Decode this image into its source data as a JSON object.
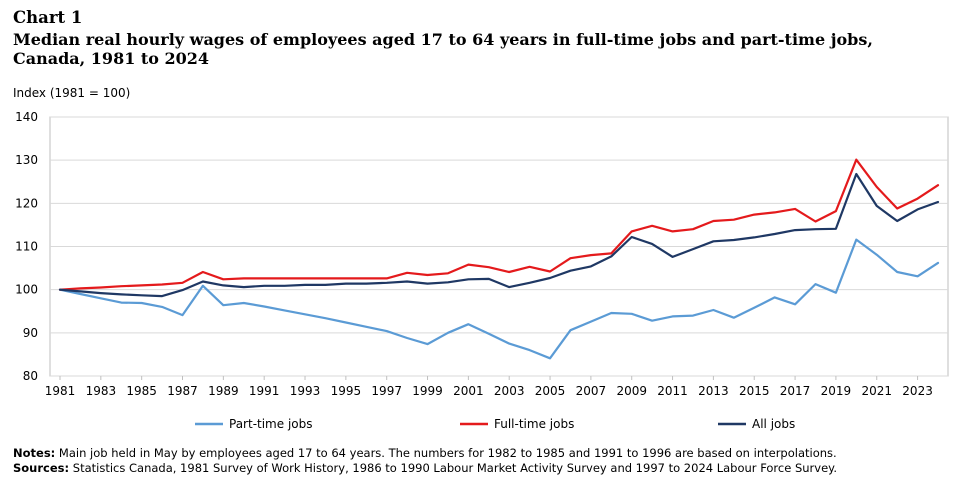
{
  "header": {
    "chart_number": "Chart 1",
    "title_line1": "Median real hourly wages of employees aged 17 to 64 years in full-time jobs and part-time jobs,",
    "title_line2": "Canada, 1981 to 2024"
  },
  "notes": {
    "notes_label": "Notes:",
    "notes_text": " Main job held in May by employees aged 17 to 64 years. The numbers for 1982 to 1985 and 1991 to 1996 are based on interpolations.",
    "sources_label": "Sources:",
    "sources_text": " Statistics Canada, 1981 Survey of Work History, 1986 to 1990 Labour Market Activity Survey and 1997 to 2024 Labour Force Survey."
  },
  "chart_data": {
    "type": "line",
    "title": "Median real hourly wages of employees aged 17 to 64 years in full-time jobs and part-time jobs, Canada, 1981 to 2024",
    "ylabel": "Index (1981 = 100)",
    "xlabel": "",
    "ylim": [
      80,
      140
    ],
    "yticks": [
      80,
      90,
      100,
      110,
      120,
      130,
      140
    ],
    "xticks": [
      1981,
      1983,
      1985,
      1987,
      1989,
      1991,
      1993,
      1995,
      1997,
      1999,
      2001,
      2003,
      2005,
      2007,
      2009,
      2011,
      2013,
      2015,
      2017,
      2019,
      2021,
      2023
    ],
    "xlim": [
      1981,
      2024
    ],
    "grid": true,
    "legend_position": "bottom",
    "x": [
      1981,
      1982,
      1983,
      1984,
      1985,
      1986,
      1987,
      1988,
      1989,
      1990,
      1991,
      1992,
      1993,
      1994,
      1995,
      1996,
      1997,
      1998,
      1999,
      2000,
      2001,
      2002,
      2003,
      2004,
      2005,
      2006,
      2007,
      2008,
      2009,
      2010,
      2011,
      2012,
      2013,
      2014,
      2015,
      2016,
      2017,
      2018,
      2019,
      2020,
      2021,
      2022,
      2023,
      2024
    ],
    "series": [
      {
        "name": "Part-time jobs",
        "color": "#5b9bd5",
        "values": [
          100,
          99,
          98,
          97,
          96.9,
          96,
          94.1,
          100.9,
          96.4,
          96.9,
          96.1,
          95.2,
          94.3,
          93.4,
          92.4,
          91.4,
          90.4,
          88.8,
          87.4,
          90,
          92,
          89.8,
          87.5,
          86,
          84.1,
          90.6,
          92.6,
          94.6,
          94.4,
          92.8,
          93.8,
          94,
          95.3,
          93.5,
          95.8,
          98.2,
          96.6,
          101.3,
          99.3,
          111.6,
          108.1,
          104.1,
          103.1,
          106.2
        ]
      },
      {
        "name": "Full-time jobs",
        "color": "#e41a1c",
        "values": [
          100,
          100.3,
          100.5,
          100.8,
          101,
          101.2,
          101.6,
          104.1,
          102.4,
          102.6,
          102.6,
          102.6,
          102.6,
          102.6,
          102.6,
          102.6,
          102.6,
          103.9,
          103.4,
          103.8,
          105.8,
          105.2,
          104.1,
          105.3,
          104.2,
          107.3,
          108,
          108.4,
          113.5,
          114.8,
          113.5,
          114,
          115.9,
          116.2,
          117.4,
          117.9,
          118.7,
          115.8,
          118.2,
          130.1,
          123.8,
          118.8,
          121.1,
          124.2
        ]
      },
      {
        "name": "All jobs",
        "color": "#1f3864",
        "values": [
          100,
          99.6,
          99.2,
          98.9,
          98.7,
          98.5,
          99.9,
          101.9,
          101,
          100.6,
          100.9,
          100.9,
          101.1,
          101.1,
          101.4,
          101.4,
          101.6,
          101.9,
          101.4,
          101.7,
          102.4,
          102.5,
          100.6,
          101.6,
          102.7,
          104.4,
          105.4,
          107.7,
          112.2,
          110.6,
          107.6,
          109.4,
          111.2,
          111.5,
          112.1,
          112.9,
          113.8,
          114,
          114.1,
          126.8,
          119.4,
          115.9,
          118.6,
          120.3
        ]
      }
    ]
  }
}
